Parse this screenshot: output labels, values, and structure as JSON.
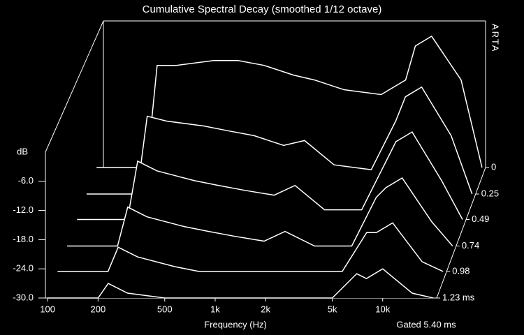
{
  "chart_data": {
    "type": "waterfall",
    "title": "Cumulative Spectral Decay (smoothed 1/12 octave)",
    "xlabel": "Frequency (Hz)",
    "ylabel": "dB",
    "annotations": [
      "ARTA",
      "Gated 5.40 ms"
    ],
    "x": [
      100,
      200,
      230,
      300,
      500,
      700,
      1000,
      1500,
      2000,
      3000,
      5000,
      7000,
      8000,
      10000,
      15000,
      20000
    ],
    "xscale": "log",
    "xlim": [
      97,
      21000
    ],
    "xticks": [
      100,
      200,
      500,
      {
        "value": 1000,
        "label": "1k"
      },
      {
        "value": 2000,
        "label": "2k"
      },
      {
        "value": 5000,
        "label": "5k"
      },
      {
        "value": 10000,
        "label": "10k"
      }
    ],
    "ylim": [
      -30,
      0
    ],
    "yticks": [
      {
        "value": -6,
        "label": "-6.0"
      },
      {
        "value": -12,
        "label": "-12.0"
      },
      {
        "value": -18,
        "label": "-18.0"
      },
      {
        "value": -24,
        "label": "-24.0"
      },
      {
        "value": -30,
        "label": "-30.0"
      }
    ],
    "zlim": [
      0,
      1.23
    ],
    "zticks": [
      0,
      0.25,
      0.49,
      0.74,
      0.98,
      {
        "value": 1.23,
        "label": "1.23 ms"
      }
    ],
    "color": "#ffffff",
    "series": [
      {
        "time": 0,
        "values": [
          -30,
          -30,
          -9,
          -9,
          -8,
          -8,
          -9,
          -11,
          -12,
          -14,
          -15,
          -12,
          -5,
          -3,
          -12,
          -30
        ]
      },
      {
        "time": 0.25,
        "values": [
          -30,
          -30,
          -14,
          -15,
          -16,
          -17,
          -18,
          -20,
          -19,
          -24,
          -25,
          -15,
          -10,
          -8,
          -18,
          -30
        ]
      },
      {
        "time": 0.49,
        "values": [
          -30,
          -30,
          -18,
          -20,
          -22,
          -23,
          -24,
          -25,
          -23,
          -28,
          -28,
          -18,
          -14,
          -12,
          -22,
          -30
        ]
      },
      {
        "time": 0.74,
        "values": [
          -30,
          -30,
          -22,
          -24,
          -26,
          -27,
          -28,
          -29,
          -27,
          -30,
          -30,
          -20,
          -18,
          -16,
          -25,
          -30
        ]
      },
      {
        "time": 0.98,
        "values": [
          -30,
          -30,
          -25,
          -27,
          -29,
          -30,
          -30,
          -30,
          -30,
          -30,
          -30,
          -22,
          -22,
          -20,
          -28,
          -30
        ]
      },
      {
        "time": 1.23,
        "values": [
          -30,
          -30,
          -27,
          -29,
          -30,
          -30,
          -30,
          -30,
          -30,
          -30,
          -30,
          -25,
          -26,
          -24,
          -29,
          -30
        ]
      }
    ]
  }
}
